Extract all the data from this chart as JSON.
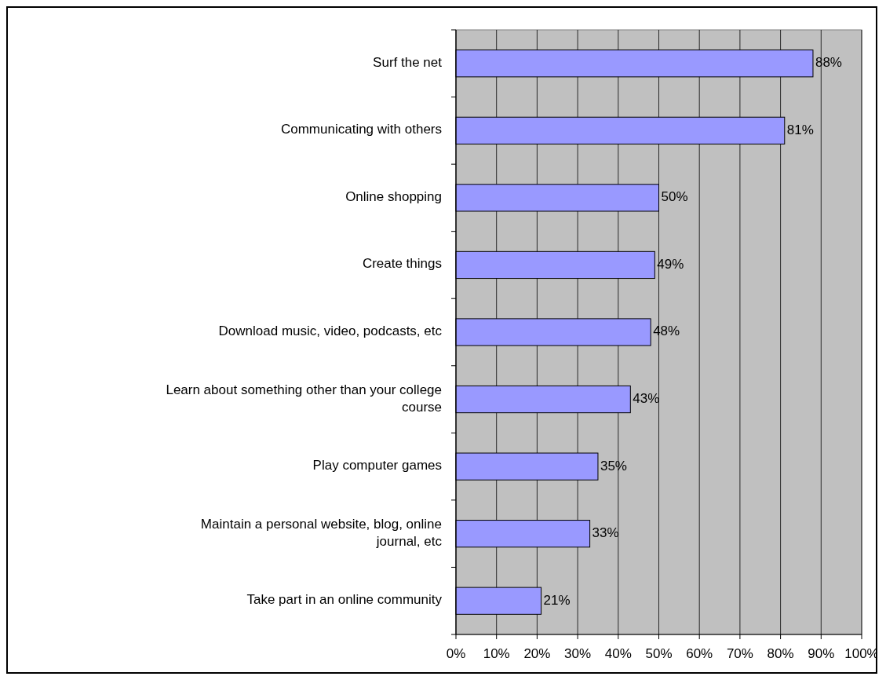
{
  "chart_data": {
    "type": "bar",
    "orientation": "horizontal",
    "categories": [
      "Surf the net",
      "Communicating with others",
      "Online shopping",
      "Create things",
      "Download music, video, podcasts, etc",
      "Learn about something other than your college course",
      "Play computer games",
      "Maintain a personal website, blog, online journal, etc",
      "Take part in an online community"
    ],
    "values": [
      88,
      81,
      50,
      49,
      48,
      43,
      35,
      33,
      21
    ],
    "value_labels": [
      "88%",
      "81%",
      "50%",
      "49%",
      "48%",
      "43%",
      "35%",
      "33%",
      "21%"
    ],
    "color": "#9999ff",
    "xlim": [
      0,
      100
    ],
    "xticks": [
      {
        "value": 0,
        "label": "0%"
      },
      {
        "value": 10,
        "label": "10%"
      },
      {
        "value": 20,
        "label": "20%"
      },
      {
        "value": 30,
        "label": "30%"
      },
      {
        "value": 40,
        "label": "40%"
      },
      {
        "value": 50,
        "label": "50%"
      },
      {
        "value": 60,
        "label": "60%"
      },
      {
        "value": 70,
        "label": "70%"
      },
      {
        "value": 80,
        "label": "80%"
      },
      {
        "value": 90,
        "label": "90%"
      },
      {
        "value": 100,
        "label": "100%"
      }
    ],
    "grid": "x"
  }
}
